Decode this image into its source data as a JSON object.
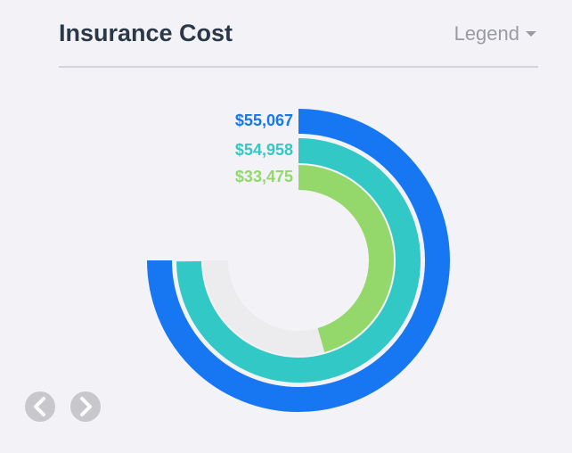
{
  "chart_data": {
    "type": "radial-bar",
    "title": "Insurance Cost",
    "values": [
      55067,
      54958,
      33475
    ],
    "value_labels": [
      "$55,067",
      "$54,958",
      "$33,475"
    ],
    "colors": [
      "#1777f2",
      "#31c8c6",
      "#94d76b"
    ],
    "track_color": "#ececef"
  },
  "controls": {
    "legend": "Legend"
  }
}
